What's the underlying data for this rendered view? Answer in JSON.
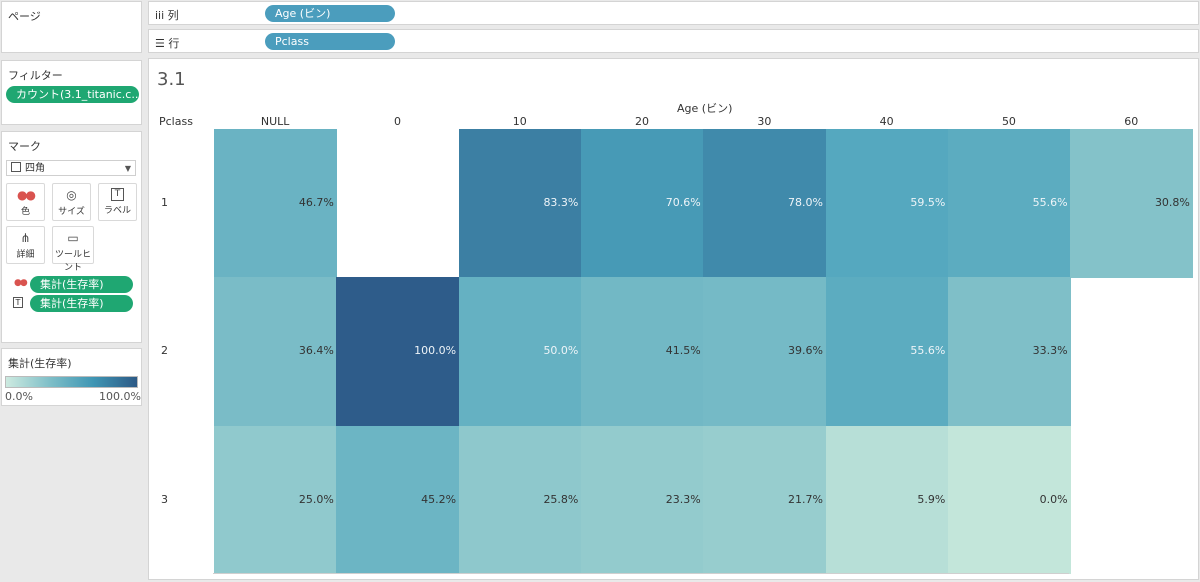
{
  "pages": {
    "title": "ページ"
  },
  "filters": {
    "title": "フィルター",
    "pill": "カウント(3.1_titanic.c..."
  },
  "marks": {
    "title": "マーク",
    "type": "四角",
    "buttons": [
      {
        "label": "色",
        "icon": "●●"
      },
      {
        "label": "サイズ",
        "icon": "◎"
      },
      {
        "label": "ラベル",
        "icon": "T"
      },
      {
        "label": "詳細",
        "icon": "⋔"
      },
      {
        "label": "ツールヒント",
        "icon": "▭"
      }
    ],
    "fields": [
      {
        "icon": "●●",
        "label": "集計(生存率)"
      },
      {
        "icon": "T",
        "label": "集計(生存率)"
      }
    ]
  },
  "legend": {
    "title": "集計(生存率)",
    "min": "0.0%",
    "max": "100.0%",
    "colors": [
      "#cdeae0",
      "#2d5a86"
    ]
  },
  "shelves": {
    "columns": {
      "label": "列",
      "icon": "iii",
      "pill": "Age (ビン)"
    },
    "rows": {
      "label": "行",
      "icon": "☰",
      "pill": "Pclass"
    }
  },
  "view": {
    "title": "3.1",
    "column_field": "Age (ビン)",
    "row_field": "Pclass"
  },
  "chart_data": {
    "type": "heatmap",
    "title": "3.1",
    "x_field": "Age (ビン)",
    "y_field": "Pclass",
    "columns": [
      "NULL",
      "0",
      "10",
      "20",
      "30",
      "40",
      "50",
      "60"
    ],
    "rows": [
      "1",
      "2",
      "3"
    ],
    "values": [
      [
        46.7,
        null,
        83.3,
        70.6,
        78.0,
        59.5,
        55.6,
        30.8
      ],
      [
        36.4,
        100.0,
        50.0,
        41.5,
        39.6,
        55.6,
        33.3,
        null
      ],
      [
        25.0,
        45.2,
        25.8,
        23.3,
        21.7,
        5.9,
        0.0,
        null
      ]
    ],
    "labels": [
      [
        "46.7%",
        "",
        "83.3%",
        "70.6%",
        "78.0%",
        "59.5%",
        "55.6%",
        "30.8%"
      ],
      [
        "36.4%",
        "100.0%",
        "50.0%",
        "41.5%",
        "39.6%",
        "55.6%",
        "33.3%",
        ""
      ],
      [
        "25.0%",
        "45.2%",
        "25.8%",
        "23.3%",
        "21.7%",
        "5.9%",
        "0.0%",
        ""
      ]
    ],
    "color_range": [
      0,
      100
    ],
    "color_scale": [
      "#c3e6da",
      "#7fbfc8",
      "#4aa2bc",
      "#2e5c8a"
    ]
  }
}
